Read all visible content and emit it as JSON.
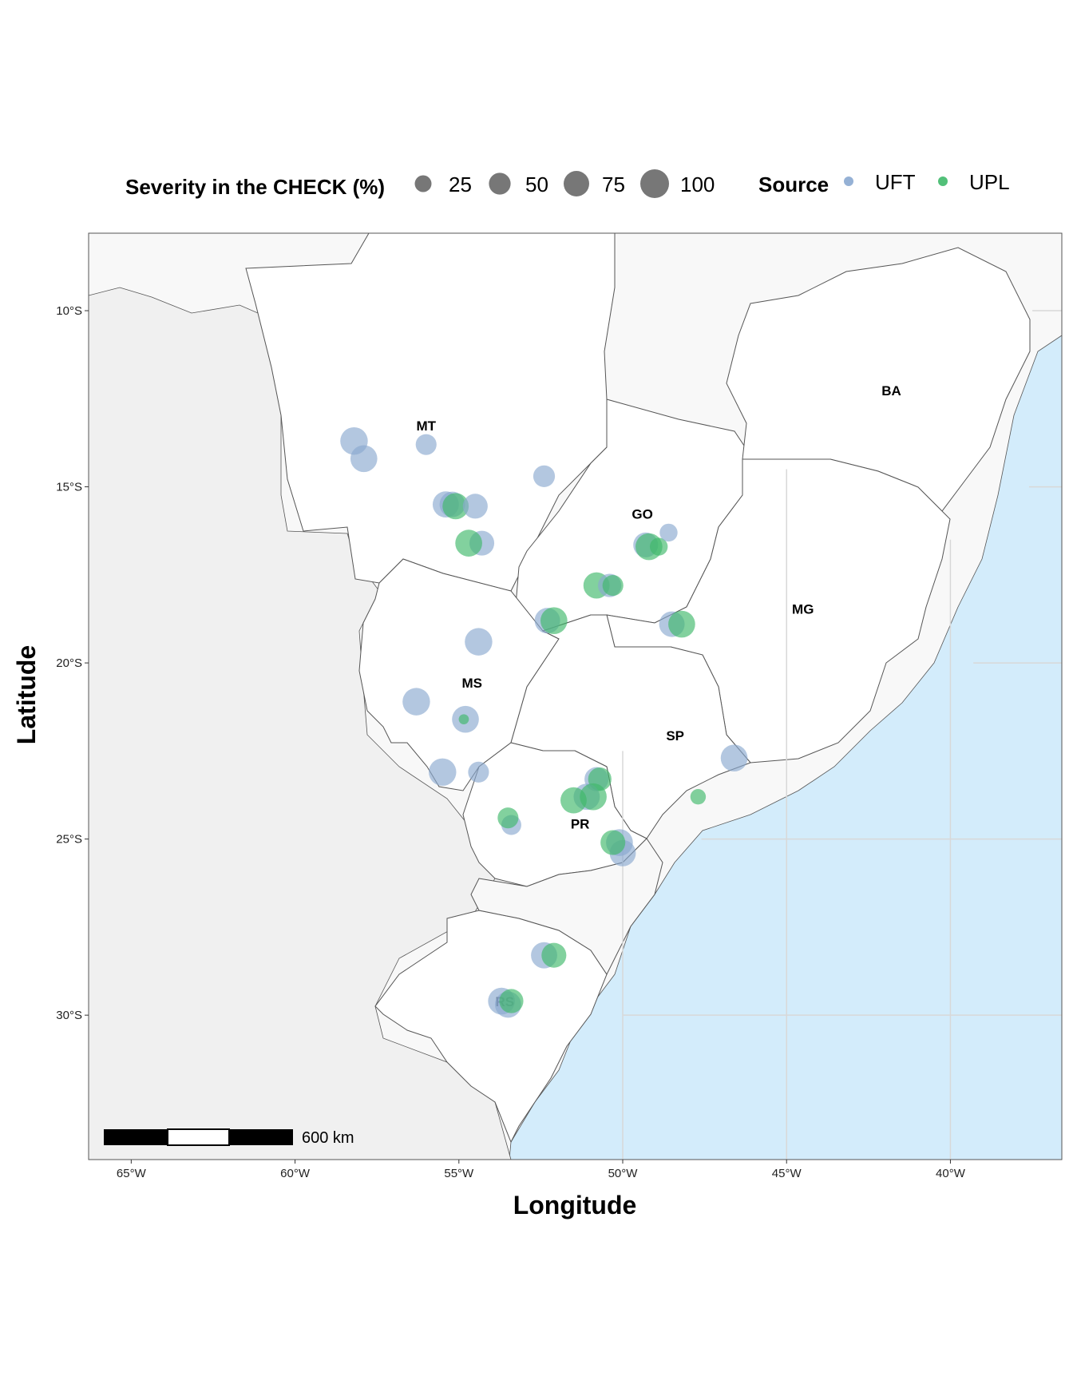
{
  "legend": {
    "size_title": "Severity in the CHECK (%)",
    "size_items": [
      {
        "label": "25",
        "value": 25
      },
      {
        "label": "50",
        "value": 50
      },
      {
        "label": "75",
        "value": 75
      },
      {
        "label": "100",
        "value": 100
      }
    ],
    "source_title": "Source",
    "source_items": [
      {
        "label": "UFT",
        "color": "#8aa9d0"
      },
      {
        "label": "UPL",
        "color": "#3fb96a"
      }
    ]
  },
  "axes": {
    "xlabel": "Longitude",
    "ylabel": "Latitude",
    "x_ticks": [
      "65°W",
      "60°W",
      "55°W",
      "50°W",
      "45°W",
      "40°W"
    ],
    "y_ticks": [
      "10°S",
      "15°S",
      "20°S",
      "25°S",
      "30°S"
    ]
  },
  "scalebar": {
    "label": "600 km"
  },
  "colors": {
    "ocean": "#d3ecfb",
    "state_fill": "#ffffff",
    "neighbor_fill": "#f8f8f8",
    "other_country_fill": "#f0f0f0",
    "border": "#555555",
    "grid": "#d8d8d8"
  },
  "state_labels": [
    {
      "text": "MT",
      "lon": -56.0,
      "lat": -13.4
    },
    {
      "text": "GO",
      "lon": -49.4,
      "lat": -15.9
    },
    {
      "text": "BA",
      "lon": -41.8,
      "lat": -12.4
    },
    {
      "text": "MG",
      "lon": -44.5,
      "lat": -18.6
    },
    {
      "text": "MS",
      "lon": -54.6,
      "lat": -20.7
    },
    {
      "text": "SP",
      "lon": -48.4,
      "lat": -22.2
    },
    {
      "text": "PR",
      "lon": -51.3,
      "lat": -24.7
    },
    {
      "text": "RS",
      "lon": -53.6,
      "lat": -29.75
    }
  ],
  "chart_data": {
    "type": "scatter",
    "xlim": [
      -66.3,
      -36.6
    ],
    "ylim": [
      -34.1,
      -7.8
    ],
    "size_variable": "Severity in the CHECK (%)",
    "color_variable": "Source",
    "points": [
      {
        "source": "UFT",
        "lon": -58.2,
        "lat": -13.7,
        "severity": 90
      },
      {
        "source": "UFT",
        "lon": -57.9,
        "lat": -14.2,
        "severity": 85
      },
      {
        "source": "UFT",
        "lon": -56.0,
        "lat": -13.8,
        "severity": 45
      },
      {
        "source": "UFT",
        "lon": -55.4,
        "lat": -15.5,
        "severity": 80
      },
      {
        "source": "UFT",
        "lon": -55.2,
        "lat": -15.5,
        "severity": 75
      },
      {
        "source": "UPL",
        "lon": -55.1,
        "lat": -15.55,
        "severity": 80
      },
      {
        "source": "UFT",
        "lon": -54.5,
        "lat": -15.55,
        "severity": 70
      },
      {
        "source": "UFT",
        "lon": -52.4,
        "lat": -14.7,
        "severity": 50
      },
      {
        "source": "UFT",
        "lon": -54.3,
        "lat": -16.6,
        "severity": 70
      },
      {
        "source": "UPL",
        "lon": -54.7,
        "lat": -16.6,
        "severity": 85
      },
      {
        "source": "UFT",
        "lon": -49.3,
        "lat": -16.65,
        "severity": 70
      },
      {
        "source": "UPL",
        "lon": -49.2,
        "lat": -16.7,
        "severity": 85
      },
      {
        "source": "UPL",
        "lon": -48.9,
        "lat": -16.7,
        "severity": 30
      },
      {
        "source": "UFT",
        "lon": -48.6,
        "lat": -16.3,
        "severity": 30
      },
      {
        "source": "UPL",
        "lon": -50.8,
        "lat": -17.8,
        "severity": 80
      },
      {
        "source": "UFT",
        "lon": -50.4,
        "lat": -17.8,
        "severity": 60
      },
      {
        "source": "UPL",
        "lon": -50.3,
        "lat": -17.8,
        "severity": 45
      },
      {
        "source": "UFT",
        "lon": -52.3,
        "lat": -18.8,
        "severity": 75
      },
      {
        "source": "UPL",
        "lon": -52.1,
        "lat": -18.8,
        "severity": 85
      },
      {
        "source": "UFT",
        "lon": -48.5,
        "lat": -18.9,
        "severity": 75
      },
      {
        "source": "UPL",
        "lon": -48.2,
        "lat": -18.9,
        "severity": 85
      },
      {
        "source": "UFT",
        "lon": -54.4,
        "lat": -19.4,
        "severity": 90
      },
      {
        "source": "UFT",
        "lon": -56.3,
        "lat": -21.1,
        "severity": 90
      },
      {
        "source": "UFT",
        "lon": -54.8,
        "lat": -21.6,
        "severity": 85
      },
      {
        "source": "UPL",
        "lon": -54.85,
        "lat": -21.6,
        "severity": 5
      },
      {
        "source": "UFT",
        "lon": -55.5,
        "lat": -23.1,
        "severity": 90
      },
      {
        "source": "UFT",
        "lon": -54.4,
        "lat": -23.1,
        "severity": 45
      },
      {
        "source": "UFT",
        "lon": -46.6,
        "lat": -22.7,
        "severity": 85
      },
      {
        "source": "UPL",
        "lon": -47.7,
        "lat": -23.8,
        "severity": 20
      },
      {
        "source": "UFT",
        "lon": -50.8,
        "lat": -23.3,
        "severity": 65
      },
      {
        "source": "UPL",
        "lon": -50.7,
        "lat": -23.3,
        "severity": 60
      },
      {
        "source": "UFT",
        "lon": -51.1,
        "lat": -23.8,
        "severity": 80
      },
      {
        "source": "UPL",
        "lon": -51.5,
        "lat": -23.9,
        "severity": 80
      },
      {
        "source": "UPL",
        "lon": -50.9,
        "lat": -23.8,
        "severity": 85
      },
      {
        "source": "UFT",
        "lon": -53.4,
        "lat": -24.6,
        "severity": 40
      },
      {
        "source": "UPL",
        "lon": -53.5,
        "lat": -24.4,
        "severity": 45
      },
      {
        "source": "UFT",
        "lon": -50.1,
        "lat": -25.1,
        "severity": 85
      },
      {
        "source": "UFT",
        "lon": -50.0,
        "lat": -25.4,
        "severity": 80
      },
      {
        "source": "UPL",
        "lon": -50.3,
        "lat": -25.1,
        "severity": 70
      },
      {
        "source": "UFT",
        "lon": -52.4,
        "lat": -28.3,
        "severity": 80
      },
      {
        "source": "UPL",
        "lon": -52.1,
        "lat": -28.3,
        "severity": 70
      },
      {
        "source": "UFT",
        "lon": -53.7,
        "lat": -29.6,
        "severity": 85
      },
      {
        "source": "UFT",
        "lon": -53.5,
        "lat": -29.7,
        "severity": 80
      },
      {
        "source": "UPL",
        "lon": -53.4,
        "lat": -29.6,
        "severity": 65
      }
    ]
  }
}
